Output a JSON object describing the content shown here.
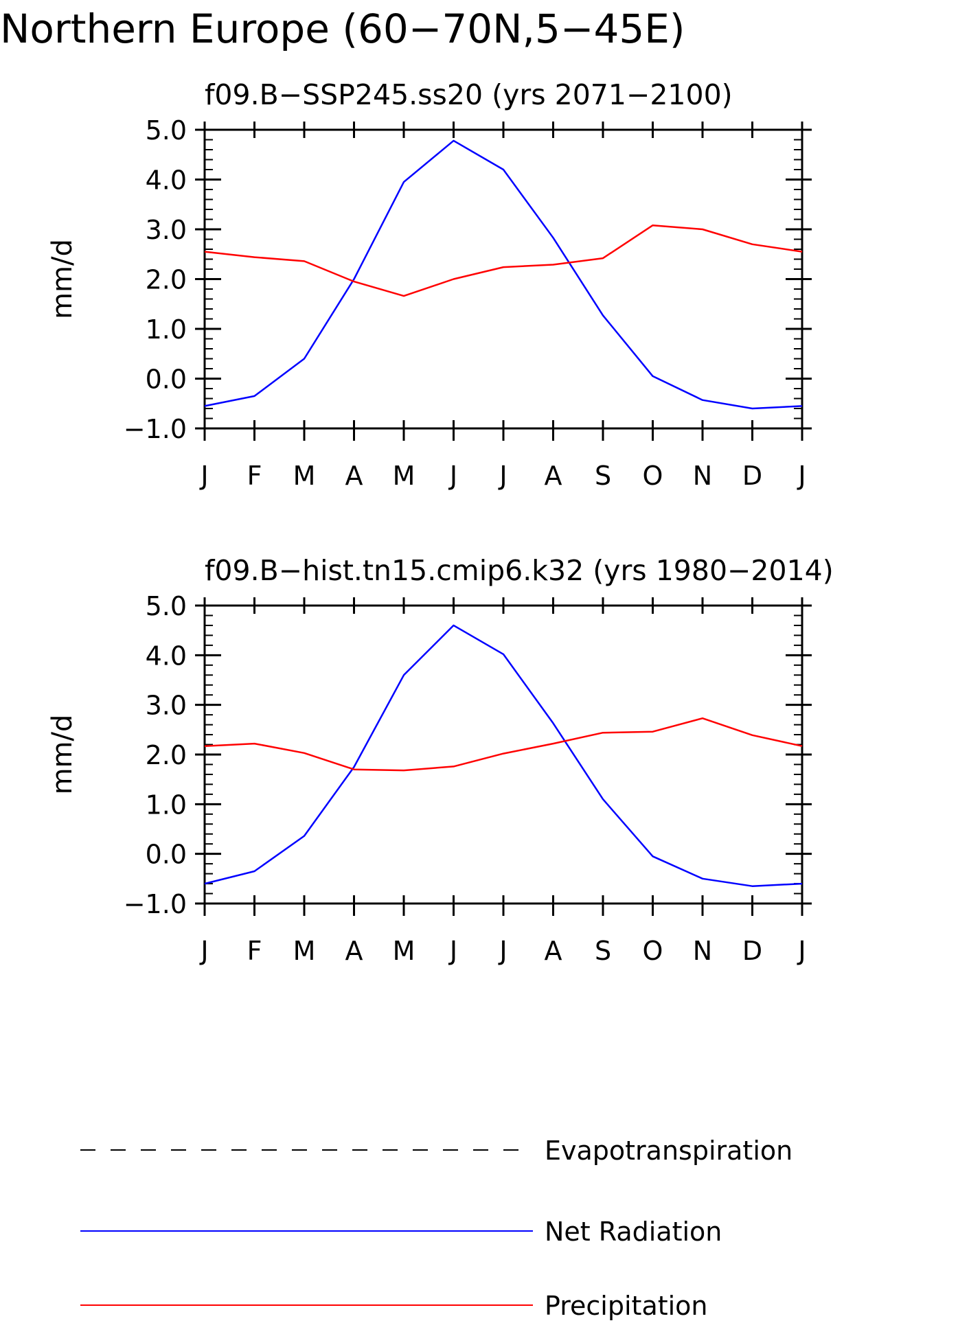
{
  "title": "Northern Europe (60−70N,5−45E)",
  "chart_data": [
    {
      "type": "line",
      "title": "f09.B−SSP245.ss20 (yrs 2071−2100)",
      "xlabel": "",
      "ylabel": "mm/d",
      "ylim": [
        -1.0,
        5.0
      ],
      "y_ticks": [
        "−1.0",
        "0.0",
        "1.0",
        "2.0",
        "3.0",
        "4.0",
        "5.0"
      ],
      "categories": [
        "J",
        "F",
        "M",
        "A",
        "M",
        "J",
        "J",
        "A",
        "S",
        "O",
        "N",
        "D",
        "J"
      ],
      "grid": false,
      "series": [
        {
          "name": "Net Radiation",
          "color": "#0000ff",
          "values": [
            -0.55,
            -0.35,
            0.4,
            2.0,
            3.95,
            4.78,
            4.2,
            2.83,
            1.27,
            0.05,
            -0.43,
            -0.6,
            -0.55
          ]
        },
        {
          "name": "Precipitation",
          "color": "#ff0000",
          "values": [
            2.55,
            2.44,
            2.36,
            1.95,
            1.66,
            2.0,
            2.24,
            2.29,
            2.42,
            3.08,
            3.0,
            2.7,
            2.55
          ]
        }
      ]
    },
    {
      "type": "line",
      "title": "f09.B−hist.tn15.cmip6.k32 (yrs 1980−2014)",
      "xlabel": "",
      "ylabel": "mm/d",
      "ylim": [
        -1.0,
        5.0
      ],
      "y_ticks": [
        "−1.0",
        "0.0",
        "1.0",
        "2.0",
        "3.0",
        "4.0",
        "5.0"
      ],
      "categories": [
        "J",
        "F",
        "M",
        "A",
        "M",
        "J",
        "J",
        "A",
        "S",
        "O",
        "N",
        "D",
        "J"
      ],
      "grid": false,
      "series": [
        {
          "name": "Net Radiation",
          "color": "#0000ff",
          "values": [
            -0.6,
            -0.35,
            0.36,
            1.75,
            3.6,
            4.6,
            4.02,
            2.63,
            1.1,
            -0.05,
            -0.5,
            -0.65,
            -0.6
          ]
        },
        {
          "name": "Precipitation",
          "color": "#ff0000",
          "values": [
            2.17,
            2.22,
            2.03,
            1.7,
            1.68,
            1.76,
            2.02,
            2.22,
            2.44,
            2.46,
            2.73,
            2.39,
            2.17
          ]
        }
      ]
    }
  ],
  "legend": {
    "placement": "bottom",
    "items": [
      {
        "label": "Evapotranspiration",
        "color": "#000000",
        "style": "dashed"
      },
      {
        "label": "Net Radiation",
        "color": "#0000ff",
        "style": "solid"
      },
      {
        "label": "Precipitation",
        "color": "#ff0000",
        "style": "solid"
      }
    ]
  }
}
